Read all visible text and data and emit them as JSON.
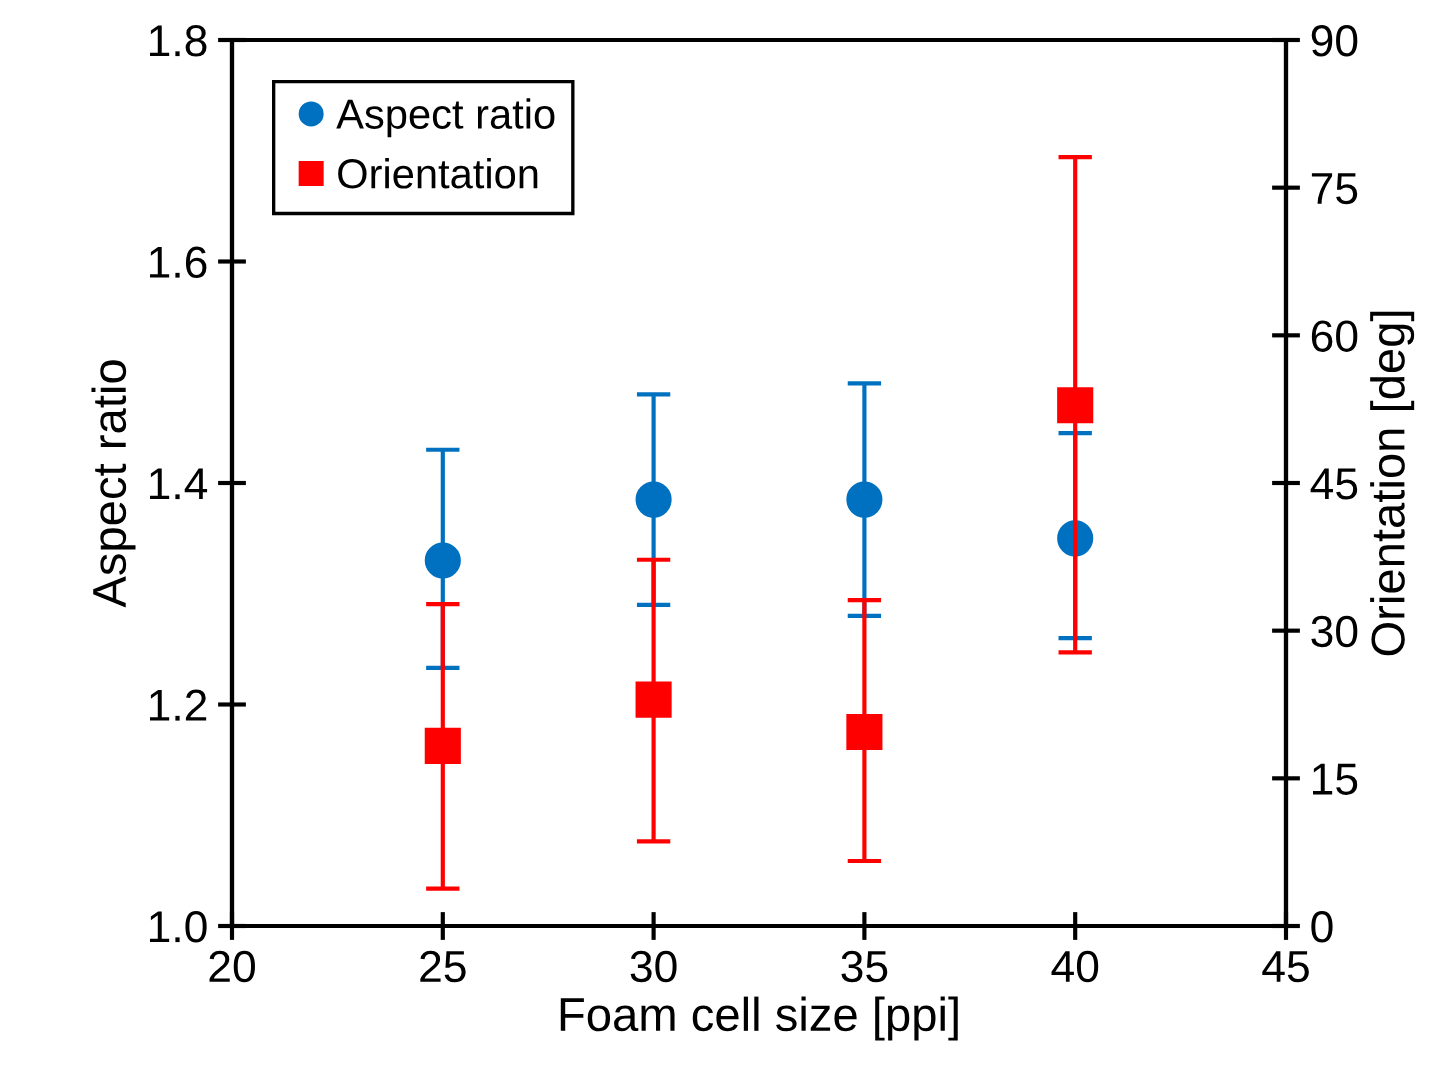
{
  "chart_data": {
    "type": "scatter",
    "xlabel": "Foam cell size [ppi]",
    "ylabel": "Aspect ratio",
    "y2label": "Orientation [deg]",
    "x": [
      25,
      30,
      35,
      40
    ],
    "series": [
      {
        "name": "Aspect ratio",
        "color": "#0070c0",
        "marker": "circle",
        "values": [
          1.33,
          1.385,
          1.385,
          1.35
        ],
        "errors": [
          [
            1.233,
            1.43
          ],
          [
            1.29,
            1.48
          ],
          [
            1.28,
            1.49
          ],
          [
            1.26,
            1.445
          ]
        ]
      },
      {
        "name": "Orientation",
        "color": "#ff0000",
        "marker": "square",
        "axis": "y2",
        "values": [
          18.3,
          23.0,
          19.7,
          52.9
        ],
        "errors": [
          [
            3.8,
            32.7
          ],
          [
            8.6,
            37.2
          ],
          [
            6.6,
            33.1
          ],
          [
            27.8,
            78.1
          ]
        ]
      }
    ],
    "xlim": [
      20,
      45
    ],
    "xticks": [
      20,
      25,
      30,
      35,
      40,
      45
    ],
    "ylim": [
      1.0,
      1.8
    ],
    "yticks": [
      {
        "value": 1.0,
        "label": "1.0"
      },
      1.2,
      1.4,
      1.6,
      1.8
    ],
    "y2lim": [
      0,
      90
    ],
    "y2ticks": [
      0,
      15,
      30,
      45,
      60,
      75,
      90
    ],
    "grid": false,
    "legend": "top left"
  }
}
